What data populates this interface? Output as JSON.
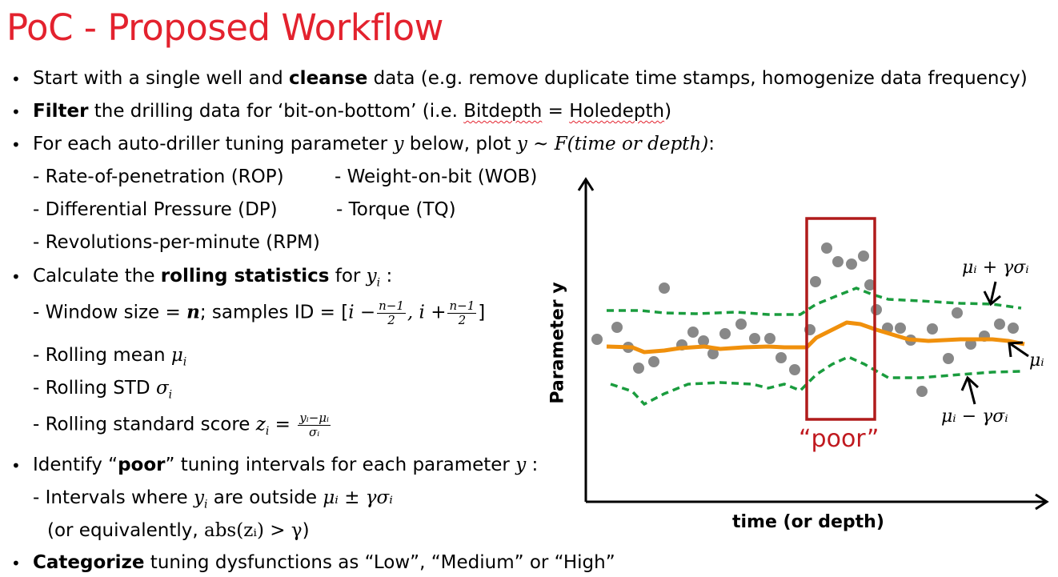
{
  "title": "PoC - Proposed Workflow",
  "bullets": {
    "b1": {
      "pre": "Start with a single well and ",
      "bold": "cleanse",
      "post": " data (e.g. remove duplicate time stamps, homogenize data frequency)"
    },
    "b2": {
      "bold": "Filter",
      "mid": " the drilling data for ‘bit-on-bottom’ (i.e. ",
      "w1": "Bitdepth",
      "eq": " = ",
      "w2": "Holedepth",
      "post": ")"
    },
    "b3": {
      "pre": "For each auto-driller tuning parameter ",
      "y": "y",
      "mid": " below, plot ",
      "formula": "y ~ F(time or depth)",
      "post": ":"
    },
    "params": {
      "rop": "- Rate-of-penetration (ROP)",
      "wob": "- Weight-on-bit (WOB)",
      "dp": "- Differential Pressure (DP)",
      "tq": "- Torque (TQ)",
      "rpm": "- Revolutions-per-minute (RPM)"
    },
    "b4": {
      "pre": "Calculate the ",
      "bold": "rolling statistics",
      "mid": " for ",
      "var": "y",
      "sub": "i",
      "post": " :"
    },
    "window": {
      "pre": "- Window size = ",
      "n": "n",
      "mid": "; samples ID = [",
      "a": "i −",
      "fnum": "n−1",
      "fden": "2",
      "b": ", i +",
      "end": "]"
    },
    "mean": {
      "pre": "- Rolling mean ",
      "sym": "μ",
      "sub": "i"
    },
    "std": {
      "pre": "- Rolling STD ",
      "sym": "σ",
      "sub": "i"
    },
    "score": {
      "pre": "- Rolling standard score ",
      "sym": "z",
      "sub": "i",
      "eq": " = ",
      "fnum": "yᵢ−μᵢ",
      "fden": "σᵢ"
    },
    "b5": {
      "pre": "Identify “",
      "bold": "poor",
      "post": "” tuning intervals for each parameter ",
      "y": "y",
      "end": " :"
    },
    "intervals": {
      "pre": "- Intervals where ",
      "y": "y",
      "sub": "i",
      "mid": " are outside ",
      "formula": "μᵢ ± γσᵢ"
    },
    "equiv": {
      "pre": "(or equivalently, ",
      "formula": "abs(zᵢ) > γ",
      "post": ")"
    },
    "b6": {
      "bold": "Categorize",
      "post": " tuning dysfunctions as “Low”, “Medium” or “High”"
    }
  },
  "diagram": {
    "ylabel": "Parameter y",
    "xlabel": "time (or depth)",
    "poor_label": "“poor”",
    "upper_label": "μᵢ + γσᵢ",
    "mean_label": "μᵢ",
    "lower_label": "μᵢ − γσᵢ",
    "colors": {
      "mean": "#f0900c",
      "band": "#1a9c3e",
      "points": "#888888",
      "box": "#b01b1b",
      "poor": "#c0191f"
    }
  }
}
